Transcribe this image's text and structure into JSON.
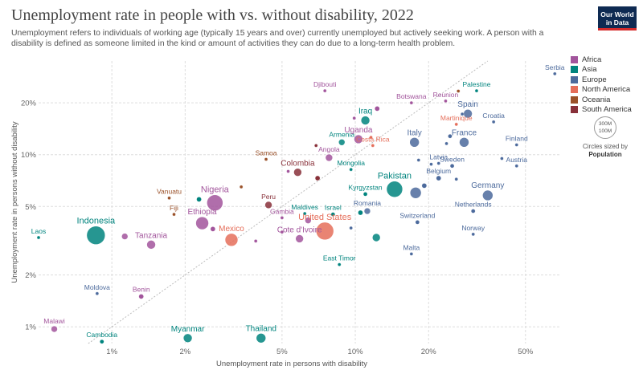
{
  "header": {
    "title": "Unemployment rate in people with vs. without disability, 2022",
    "subtitle": "Unemployment refers to individuals of working age (typically 15 years and over) currently unemployed but actively seeking work. A person with a disability is defined as someone limited in the kind or amount of activities they can do due to a long-term health problem.",
    "logo_line1": "Our World",
    "logo_line2": "in Data"
  },
  "colors": {
    "Africa": "#a2559c",
    "Asia": "#00847e",
    "Europe": "#4c6a9c",
    "North America": "#e56e5a",
    "Oceania": "#9a5129",
    "South America": "#883039"
  },
  "legend": {
    "items": [
      "Africa",
      "Asia",
      "Europe",
      "North America",
      "Oceania",
      "South America"
    ],
    "size_circle_outer": "300M",
    "size_circle_inner": "100M",
    "size_caption": "Circles sized by",
    "size_caption_bold": "Population"
  },
  "chart_data": {
    "type": "scatter",
    "xlabel": "Unemployment rate in persons with disability",
    "ylabel": "Unemployment rate in persons without disability",
    "x_scale": "log",
    "y_scale": "log",
    "xlim": [
      0.5,
      70
    ],
    "ylim": [
      0.8,
      35
    ],
    "x_ticks": [
      {
        "v": 1,
        "label": "1%"
      },
      {
        "v": 2,
        "label": "2%"
      },
      {
        "v": 5,
        "label": "5%"
      },
      {
        "v": 10,
        "label": "10%"
      },
      {
        "v": 20,
        "label": "20%"
      },
      {
        "v": 50,
        "label": "50%"
      }
    ],
    "y_ticks": [
      {
        "v": 1,
        "label": "1%"
      },
      {
        "v": 2,
        "label": "2%"
      },
      {
        "v": 5,
        "label": "5%"
      },
      {
        "v": 10,
        "label": "10%"
      },
      {
        "v": 20,
        "label": "20%"
      }
    ],
    "diagonal": "y = x",
    "grid": true,
    "points": [
      {
        "name": "Serbia",
        "x": 66,
        "y": 29.5,
        "r": 2,
        "region": "Europe",
        "label": true
      },
      {
        "name": "Palestine",
        "x": 31.5,
        "y": 23.5,
        "r": 2,
        "region": "Asia",
        "label": true
      },
      {
        "name": "Reunion",
        "x": 23.5,
        "y": 20.5,
        "r": 2,
        "region": "Africa",
        "label": true
      },
      {
        "name": "Djibouti",
        "x": 7.5,
        "y": 23.5,
        "r": 2,
        "region": "Africa",
        "label": true
      },
      {
        "name": "Botswana",
        "x": 17,
        "y": 20,
        "r": 2,
        "region": "Africa",
        "label": true
      },
      {
        "name": "Spain",
        "x": 29,
        "y": 17.3,
        "r": 5.5,
        "region": "Europe",
        "label": true
      },
      {
        "name": "Iraq",
        "x": 11,
        "y": 15.8,
        "r": 5.5,
        "region": "Asia",
        "label": true
      },
      {
        "name": "Martinique",
        "x": 26,
        "y": 15,
        "r": 2,
        "region": "North America",
        "label": true
      },
      {
        "name": "Croatia",
        "x": 37,
        "y": 15.5,
        "r": 2,
        "region": "Europe",
        "label": true
      },
      {
        "name": "Armenia",
        "x": 8.8,
        "y": 11.8,
        "r": 4,
        "region": "Asia",
        "label": true
      },
      {
        "name": "Uganda",
        "x": 10.3,
        "y": 12.3,
        "r": 5.5,
        "region": "Africa",
        "label": true
      },
      {
        "name": "Italy",
        "x": 17.5,
        "y": 11.8,
        "r": 6,
        "region": "Europe",
        "label": true
      },
      {
        "name": "France",
        "x": 28,
        "y": 11.8,
        "r": 6,
        "region": "Europe",
        "label": true
      },
      {
        "name": "Finland",
        "x": 46,
        "y": 11.4,
        "r": 2,
        "region": "Europe",
        "label": true
      },
      {
        "name": "Costa Rica",
        "x": 11.8,
        "y": 11.3,
        "r": 2,
        "region": "North America",
        "label": true
      },
      {
        "name": "Angola",
        "x": 7.8,
        "y": 9.6,
        "r": 4.5,
        "region": "Africa",
        "label": true
      },
      {
        "name": "Samoa",
        "x": 4.3,
        "y": 9.4,
        "r": 2,
        "region": "Oceania",
        "label": true
      },
      {
        "name": "Latvia",
        "x": 22,
        "y": 8.9,
        "r": 2,
        "region": "Europe",
        "label": true
      },
      {
        "name": "Sweden",
        "x": 25,
        "y": 8.6,
        "r": 2.5,
        "region": "Europe",
        "label": true
      },
      {
        "name": "Austria",
        "x": 46,
        "y": 8.6,
        "r": 2,
        "region": "Europe",
        "label": true
      },
      {
        "name": "Colombia",
        "x": 5.8,
        "y": 7.9,
        "r": 5,
        "region": "South America",
        "label": true
      },
      {
        "name": "Mongolia",
        "x": 9.6,
        "y": 8.2,
        "r": 2,
        "region": "Asia",
        "label": true
      },
      {
        "name": "Belgium",
        "x": 22,
        "y": 7.3,
        "r": 3,
        "region": "Europe",
        "label": true
      },
      {
        "name": "Pakistan",
        "x": 14.5,
        "y": 6.3,
        "r": 10,
        "region": "Asia",
        "label": true
      },
      {
        "name": "Kyrgyzstan",
        "x": 11,
        "y": 5.9,
        "r": 2.5,
        "region": "Asia",
        "label": true
      },
      {
        "name": "Germany",
        "x": 35,
        "y": 5.8,
        "r": 6.5,
        "region": "Europe",
        "label": true
      },
      {
        "name": "Vanuatu",
        "x": 1.72,
        "y": 5.6,
        "r": 2,
        "region": "Oceania",
        "label": true
      },
      {
        "name": "Nigeria",
        "x": 2.65,
        "y": 5.25,
        "r": 10,
        "region": "Africa",
        "label": true
      },
      {
        "name": "Peru",
        "x": 4.4,
        "y": 5.1,
        "r": 4.5,
        "region": "South America",
        "label": true
      },
      {
        "name": "Romania",
        "x": 11.2,
        "y": 4.7,
        "r": 4,
        "region": "Europe",
        "label": true
      },
      {
        "name": "Fiji",
        "x": 1.8,
        "y": 4.5,
        "r": 2,
        "region": "Oceania",
        "label": true
      },
      {
        "name": "Ethiopia",
        "x": 2.35,
        "y": 4.0,
        "r": 8,
        "region": "Africa",
        "label": true
      },
      {
        "name": "Maldives",
        "x": 6.2,
        "y": 4.55,
        "r": 2,
        "region": "Asia",
        "label": true
      },
      {
        "name": "Israel",
        "x": 8.1,
        "y": 4.5,
        "r": 2.5,
        "region": "Asia",
        "label": true
      },
      {
        "name": "Netherlands",
        "x": 30.5,
        "y": 4.7,
        "r": 2.5,
        "region": "Europe",
        "label": true
      },
      {
        "name": "Gambia",
        "x": 5.0,
        "y": 4.3,
        "r": 2,
        "region": "Africa",
        "label": true
      },
      {
        "name": "United States",
        "x": 7.5,
        "y": 3.6,
        "r": 11,
        "region": "North America",
        "label": true
      },
      {
        "name": "Switzerland",
        "x": 18,
        "y": 4.05,
        "r": 2.5,
        "region": "Europe",
        "label": true
      },
      {
        "name": "Indonesia",
        "x": 0.86,
        "y": 3.4,
        "r": 11.5,
        "region": "Asia",
        "label": true
      },
      {
        "name": "Laos",
        "x": 0.5,
        "y": 3.3,
        "r": 2,
        "region": "Asia",
        "label": true
      },
      {
        "name": "Mexico",
        "x": 3.1,
        "y": 3.2,
        "r": 8,
        "region": "North America",
        "label": true
      },
      {
        "name": "Cote d'Ivoire",
        "x": 5.9,
        "y": 3.25,
        "r": 5,
        "region": "Africa",
        "label": true
      },
      {
        "name": "Tanzania",
        "x": 1.45,
        "y": 3.0,
        "r": 5.5,
        "region": "Africa",
        "label": true
      },
      {
        "name": "Norway",
        "x": 30.5,
        "y": 3.45,
        "r": 2,
        "region": "Europe",
        "label": true
      },
      {
        "name": "Malta",
        "x": 17,
        "y": 2.65,
        "r": 2,
        "region": "Europe",
        "label": true
      },
      {
        "name": "East Timor",
        "x": 8.6,
        "y": 2.3,
        "r": 2,
        "region": "Asia",
        "label": true
      },
      {
        "name": "Moldova",
        "x": 0.87,
        "y": 1.56,
        "r": 2,
        "region": "Europe",
        "label": true
      },
      {
        "name": "Benin",
        "x": 1.32,
        "y": 1.5,
        "r": 3,
        "region": "Africa",
        "label": true
      },
      {
        "name": "Malawi",
        "x": 0.58,
        "y": 0.97,
        "r": 4,
        "region": "Africa",
        "label": true
      },
      {
        "name": "Myanmar",
        "x": 2.05,
        "y": 0.86,
        "r": 5.5,
        "region": "Asia",
        "label": true
      },
      {
        "name": "Thailand",
        "x": 4.1,
        "y": 0.86,
        "r": 6,
        "region": "Asia",
        "label": true
      },
      {
        "name": "Cambodia",
        "x": 0.91,
        "y": 0.82,
        "r": 2.5,
        "region": "Asia",
        "label": true
      },
      {
        "name": "",
        "x": 9.9,
        "y": 16.3,
        "r": 2,
        "region": "Africa",
        "label": false
      },
      {
        "name": "",
        "x": 12.3,
        "y": 18.5,
        "r": 3,
        "region": "Africa",
        "label": false
      },
      {
        "name": "",
        "x": 26.5,
        "y": 23.4,
        "r": 2,
        "region": "Oceania",
        "label": false
      },
      {
        "name": "",
        "x": 27.5,
        "y": 17.2,
        "r": 2,
        "region": "Europe",
        "label": false
      },
      {
        "name": "",
        "x": 11.6,
        "y": 12.6,
        "r": 2,
        "region": "North America",
        "label": false
      },
      {
        "name": "",
        "x": 6.9,
        "y": 11.3,
        "r": 2,
        "region": "South America",
        "label": false
      },
      {
        "name": "",
        "x": 24.5,
        "y": 12.8,
        "r": 2.5,
        "region": "Europe",
        "label": false
      },
      {
        "name": "",
        "x": 23.7,
        "y": 11.6,
        "r": 2,
        "region": "Europe",
        "label": false
      },
      {
        "name": "",
        "x": 18.2,
        "y": 9.3,
        "r": 2,
        "region": "Europe",
        "label": false
      },
      {
        "name": "",
        "x": 20.5,
        "y": 8.8,
        "r": 2,
        "region": "Europe",
        "label": false
      },
      {
        "name": "",
        "x": 40,
        "y": 9.5,
        "r": 2,
        "region": "Europe",
        "label": false
      },
      {
        "name": "",
        "x": 5.3,
        "y": 8.0,
        "r": 2,
        "region": "Africa",
        "label": false
      },
      {
        "name": "",
        "x": 7.0,
        "y": 7.3,
        "r": 3,
        "region": "South America",
        "label": false
      },
      {
        "name": "",
        "x": 26,
        "y": 7.2,
        "r": 2,
        "region": "Europe",
        "label": false
      },
      {
        "name": "",
        "x": 17.7,
        "y": 6.0,
        "r": 7,
        "region": "Europe",
        "label": false
      },
      {
        "name": "",
        "x": 19.2,
        "y": 6.6,
        "r": 3,
        "region": "Europe",
        "label": false
      },
      {
        "name": "",
        "x": 2.28,
        "y": 5.5,
        "r": 3,
        "region": "Asia",
        "label": false
      },
      {
        "name": "",
        "x": 3.4,
        "y": 6.5,
        "r": 2,
        "region": "Oceania",
        "label": false
      },
      {
        "name": "",
        "x": 10.5,
        "y": 4.6,
        "r": 3,
        "region": "Asia",
        "label": false
      },
      {
        "name": "",
        "x": 6.4,
        "y": 4.15,
        "r": 4,
        "region": "Africa",
        "label": false
      },
      {
        "name": "",
        "x": 2.6,
        "y": 3.7,
        "r": 3,
        "region": "Africa",
        "label": false
      },
      {
        "name": "",
        "x": 5.0,
        "y": 3.55,
        "r": 2,
        "region": "Africa",
        "label": false
      },
      {
        "name": "",
        "x": 1.13,
        "y": 3.35,
        "r": 4,
        "region": "Africa",
        "label": false
      },
      {
        "name": "",
        "x": 3.9,
        "y": 3.15,
        "r": 2,
        "region": "Africa",
        "label": false
      },
      {
        "name": "",
        "x": 9.6,
        "y": 3.75,
        "r": 2,
        "region": "Europe",
        "label": false
      },
      {
        "name": "",
        "x": 12.2,
        "y": 3.3,
        "r": 5,
        "region": "Asia",
        "label": false
      }
    ]
  }
}
